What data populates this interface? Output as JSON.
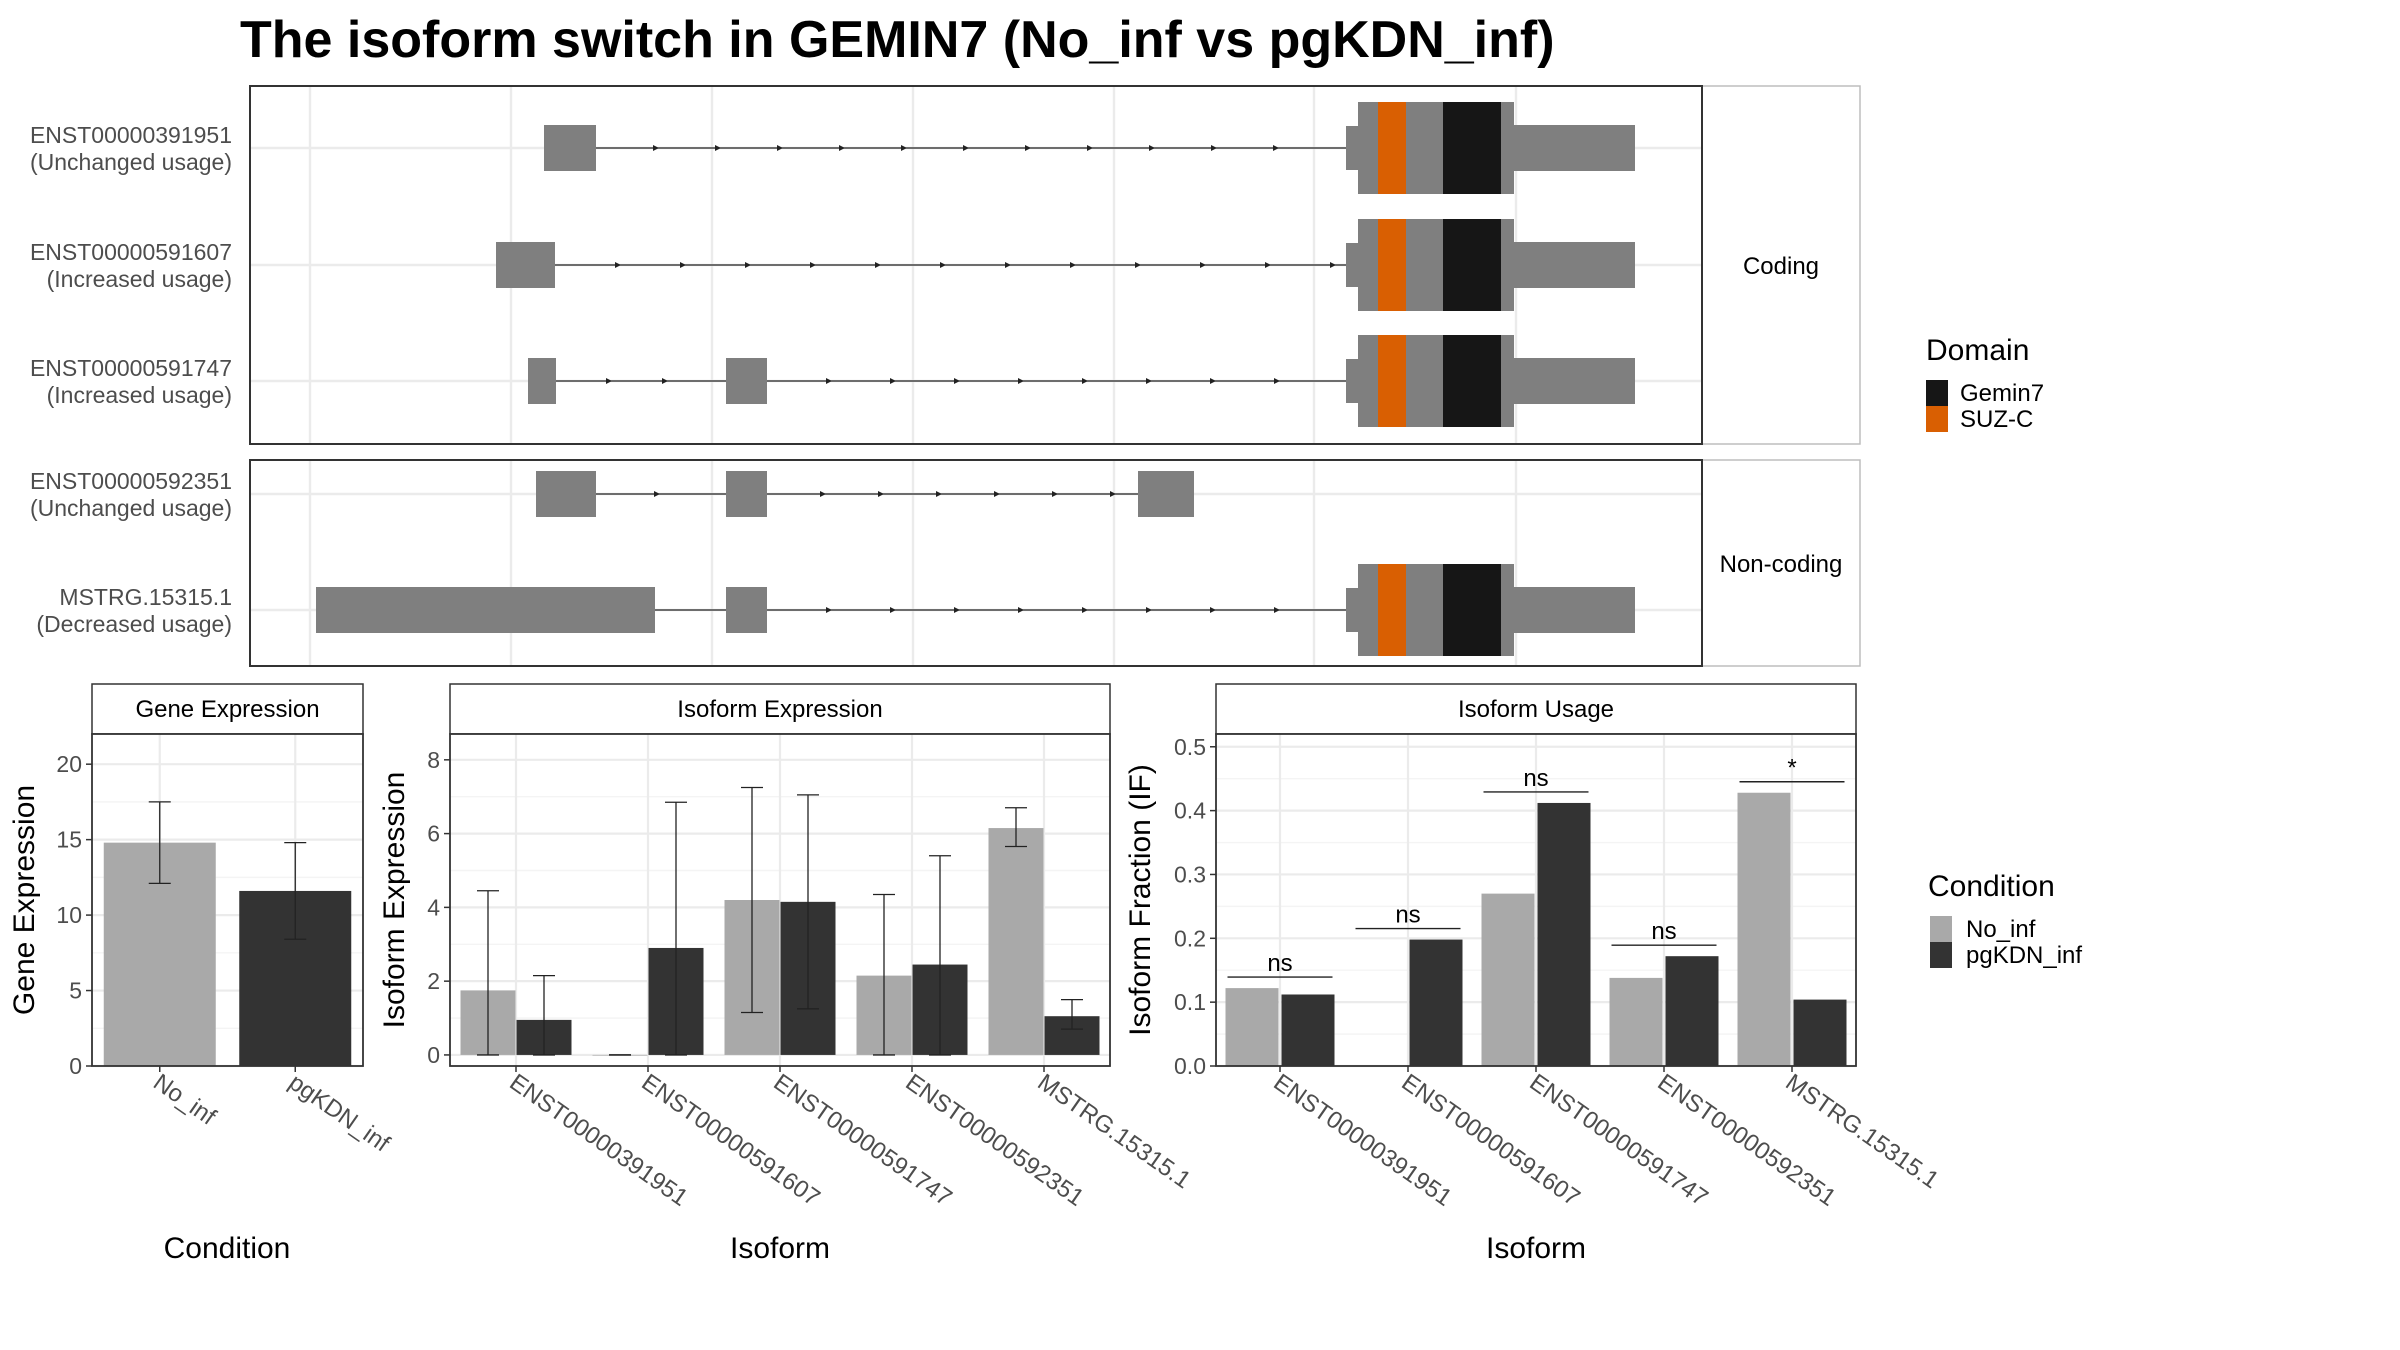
{
  "title": "The isoform switch in GEMIN7 (No_inf vs pgKDN_inf)",
  "colors": {
    "exon": "#7f7f7f",
    "gemin7": "#161616",
    "suzc": "#d95f02",
    "no_inf": "#a9a9a9",
    "pgkdn_inf": "#333333",
    "grid": "#ebebeb",
    "strip": "#ffffff"
  },
  "facets": {
    "coding": "Coding",
    "noncoding": "Non-coding"
  },
  "isoform_rows": [
    {
      "id": "ENST00000391951",
      "usage": "(Unchanged usage)",
      "facet": "coding"
    },
    {
      "id": "ENST00000591607",
      "usage": "(Increased usage)",
      "facet": "coding"
    },
    {
      "id": "ENST00000591747",
      "usage": "(Increased usage)",
      "facet": "coding"
    },
    {
      "id": "ENST00000592351",
      "usage": "(Unchanged usage)",
      "facet": "noncoding"
    },
    {
      "id": "MSTRG.15315.1",
      "usage": "(Decreased usage)",
      "facet": "noncoding"
    }
  ],
  "domain_legend": {
    "title": "Domain",
    "items": [
      {
        "label": "Gemin7",
        "color": "#161616"
      },
      {
        "label": "SUZ-C",
        "color": "#d95f02"
      }
    ]
  },
  "condition_legend": {
    "title": "Condition",
    "items": [
      {
        "label": "No_inf",
        "color": "#a9a9a9"
      },
      {
        "label": "pgKDN_inf",
        "color": "#333333"
      }
    ]
  },
  "chart_data": [
    {
      "type": "bar",
      "strip_title": "Gene Expression",
      "xlabel": "Condition",
      "ylabel": "Gene Expression",
      "ylim": [
        0,
        22
      ],
      "yticks": [
        0,
        5,
        10,
        15,
        20
      ],
      "categories": [
        "No_inf",
        "pgKDN_inf"
      ],
      "series": [
        {
          "values": [
            14.8,
            11.6
          ],
          "err_low": [
            12.1,
            8.4
          ],
          "err_high": [
            17.5,
            14.8
          ]
        }
      ]
    },
    {
      "type": "bar",
      "strip_title": "Isoform Expression",
      "xlabel": "Isoform",
      "ylabel": "Isoform Expression",
      "ylim": [
        -0.3,
        8.7
      ],
      "yticks": [
        0,
        2,
        4,
        6,
        8
      ],
      "categories": [
        "ENST00000391951",
        "ENST00000591607",
        "ENST00000591747",
        "ENST00000592351",
        "MSTRG.15315.1"
      ],
      "series": [
        {
          "name": "No_inf",
          "values": [
            1.75,
            0,
            4.2,
            2.15,
            6.15
          ],
          "err_low": [
            0,
            0,
            1.15,
            0,
            5.65
          ],
          "err_high": [
            4.45,
            0,
            7.25,
            4.35,
            6.7
          ]
        },
        {
          "name": "pgKDN_inf",
          "values": [
            0.95,
            2.9,
            4.15,
            2.45,
            1.05
          ],
          "err_low": [
            0,
            0,
            1.25,
            0,
            0.7
          ],
          "err_high": [
            2.15,
            6.85,
            7.05,
            5.4,
            1.5
          ]
        }
      ]
    },
    {
      "type": "bar",
      "strip_title": "Isoform Usage",
      "xlabel": "Isoform",
      "ylabel": "Isoform Fraction (IF)",
      "ylim": [
        0,
        0.52
      ],
      "yticks": [
        "0.0",
        "0.1",
        "0.2",
        "0.3",
        "0.4",
        "0.5"
      ],
      "categories": [
        "ENST00000391951",
        "ENST00000591607",
        "ENST00000591747",
        "ENST00000592351",
        "MSTRG.15315.1"
      ],
      "series": [
        {
          "name": "No_inf",
          "values": [
            0.122,
            0,
            0.27,
            0.138,
            0.428
          ]
        },
        {
          "name": "pgKDN_inf",
          "values": [
            0.112,
            0.198,
            0.412,
            0.172,
            0.104
          ]
        }
      ],
      "annotations": [
        "ns",
        "ns",
        "ns",
        "ns",
        "*"
      ]
    }
  ]
}
